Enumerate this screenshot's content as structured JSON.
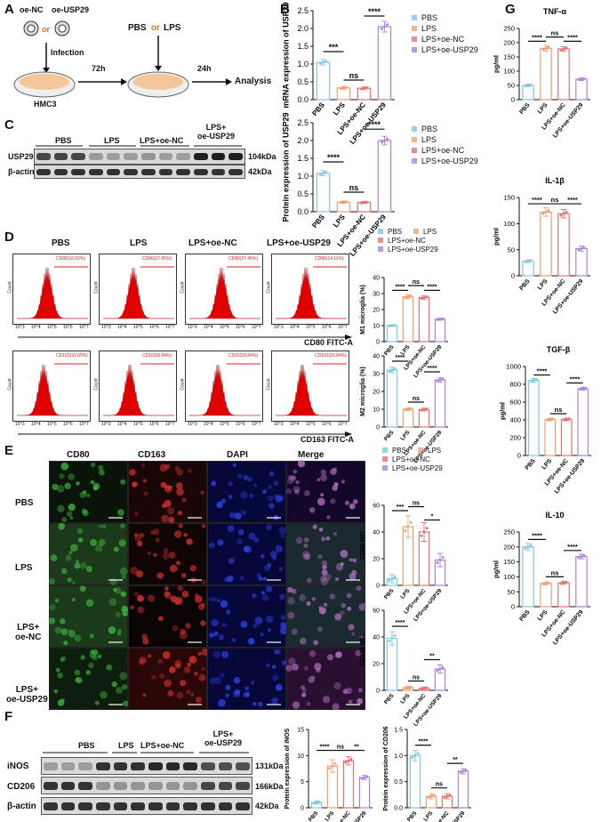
{
  "panels": {
    "A": "A",
    "B": "B",
    "C": "C",
    "D": "D",
    "E": "E",
    "F": "F",
    "G": "G"
  },
  "colors": {
    "PBS": "#7ec8e8",
    "LPS": "#f0a070",
    "LPS+oe-NC": "#e87070",
    "LPS+oe-USP29": "#b080e0",
    "green": "#2a8a2a",
    "red": "#c02020",
    "blue": "#2030c0",
    "hist": "#e00000"
  },
  "groups": [
    "PBS",
    "LPS",
    "LPS+oe-NC",
    "LPS+oe-USP29"
  ],
  "panelA": {
    "virus1": "oe-NC",
    "virus2": "oe-USP29",
    "or1": "or",
    "or2": "or",
    "infection": "Infection",
    "cell": "HMC3",
    "time1": "72h",
    "treat_pbs": "PBS",
    "treat_or": "or",
    "treat_lps": "LPS",
    "time2": "24h",
    "analysis": "Analysis"
  },
  "panelC": {
    "lane_labels": [
      "PBS",
      "LPS",
      "LPS+oe-NC",
      "LPS+\noe-USP29"
    ],
    "rows": [
      "USP29",
      "β-actin"
    ],
    "sizes": [
      "104kDa",
      "42kDa"
    ]
  },
  "panelD": {
    "cols": [
      "PBS",
      "LPS",
      "LPS+oe-NC",
      "LPS+oe-USP29"
    ],
    "gates_cd80": [
      "CD80(10.02%)",
      "CD80(27.85%)",
      "CD80(27.45%)",
      "CD80(14.11%)"
    ],
    "gates_cd163": [
      "CD163(31.65%)",
      "CD163(9.84%)",
      "CD163(9.84%)",
      "CD163(26.84%)"
    ],
    "xaxis1": "CD80 FITC-A",
    "xaxis2": "CD163 FITC-A",
    "count": "Count",
    "ticks": [
      "10^3",
      "10^4",
      "10^5",
      "10^6",
      "10^7"
    ]
  },
  "panelE": {
    "cols": [
      "CD80",
      "CD163",
      "DAPI",
      "Merge"
    ],
    "rows": [
      "PBS",
      "LPS",
      "LPS+\noe-NC",
      "LPS+\noe-USP29"
    ]
  },
  "panelF": {
    "lane_labels": [
      "PBS",
      "LPS",
      "LPS+oe-NC",
      "LPS+\noe-USP29"
    ],
    "rows": [
      "iNOS",
      "CD206",
      "β-actin"
    ],
    "sizes": [
      "131kDa",
      "166kDa",
      "42kDa"
    ]
  },
  "legend": {
    "items": [
      "PBS",
      "LPS",
      "LPS+oe-NC",
      "LPS+oe-USP29"
    ]
  },
  "chart_data": [
    {
      "id": "B1",
      "type": "bar",
      "ylabel": "mRNA expression of USP29",
      "categories": [
        "PBS",
        "LPS",
        "LPS+oe-NC",
        "LPS+oe-USP29"
      ],
      "values": [
        1.05,
        0.33,
        0.32,
        2.05
      ],
      "errors": [
        0.08,
        0.04,
        0.04,
        0.15
      ],
      "ylim": [
        0,
        2.5
      ],
      "yticks": [
        0,
        0.5,
        1.0,
        1.5,
        2.0,
        2.5
      ],
      "yticklabels": [
        "0.0",
        "0.5",
        "1.0",
        "1.5",
        "2.0",
        "2.5"
      ],
      "sig": [
        {
          "a": 0,
          "b": 1,
          "label": "***",
          "at": 1.35
        },
        {
          "a": 1,
          "b": 2,
          "label": "ns",
          "at": 0.55
        },
        {
          "a": 2,
          "b": 3,
          "label": "****",
          "at": 2.35
        }
      ]
    },
    {
      "id": "B2",
      "type": "bar",
      "ylabel": "Protein expression of USP29",
      "categories": [
        "PBS",
        "LPS",
        "LPS+oe-NC",
        "LPS+oe-USP29"
      ],
      "values": [
        1.08,
        0.27,
        0.26,
        2.0
      ],
      "errors": [
        0.07,
        0.03,
        0.03,
        0.12
      ],
      "ylim": [
        0,
        2.5
      ],
      "yticks": [
        0,
        0.5,
        1.0,
        1.5,
        2.0,
        2.5
      ],
      "yticklabels": [
        "0.0",
        "0.5",
        "1.0",
        "1.5",
        "2.0",
        "2.5"
      ],
      "sig": [
        {
          "a": 0,
          "b": 1,
          "label": "****",
          "at": 1.4
        },
        {
          "a": 1,
          "b": 2,
          "label": "ns",
          "at": 0.55
        },
        {
          "a": 2,
          "b": 3,
          "label": "****",
          "at": 2.32
        }
      ]
    },
    {
      "id": "D1",
      "type": "bar",
      "ylabel": "M1 microglia (%)",
      "categories": [
        "PBS",
        "LPS",
        "LPS+oe-NC",
        "LPS+oe-USP29"
      ],
      "values": [
        10,
        28,
        27.5,
        14
      ],
      "errors": [
        0.6,
        1.2,
        1.2,
        0.6
      ],
      "ylim": [
        0,
        40
      ],
      "yticks": [
        0,
        10,
        20,
        30,
        40
      ],
      "yticklabels": [
        "0",
        "10",
        "20",
        "30",
        "40"
      ],
      "sig": [
        {
          "a": 0,
          "b": 1,
          "label": "****",
          "at": 32
        },
        {
          "a": 1,
          "b": 2,
          "label": "ns",
          "at": 35
        },
        {
          "a": 2,
          "b": 3,
          "label": "****",
          "at": 32
        }
      ]
    },
    {
      "id": "D2",
      "type": "bar",
      "ylabel": "M2 microglia (%)",
      "categories": [
        "PBS",
        "LPS",
        "LPS+oe-NC",
        "LPS+oe-USP29"
      ],
      "values": [
        32,
        10,
        9.8,
        26.5
      ],
      "errors": [
        1.5,
        0.8,
        0.8,
        1.2
      ],
      "ylim": [
        0,
        40
      ],
      "yticks": [
        0,
        10,
        20,
        30,
        40
      ],
      "yticklabels": [
        "0",
        "10",
        "20",
        "30",
        "40"
      ],
      "sig": [
        {
          "a": 0,
          "b": 1,
          "label": "****",
          "at": 37
        },
        {
          "a": 1,
          "b": 2,
          "label": "ns",
          "at": 14
        },
        {
          "a": 2,
          "b": 3,
          "label": "****",
          "at": 31
        }
      ]
    },
    {
      "id": "E1",
      "type": "bar",
      "ylabel": "CD80 MFI",
      "categories": [
        "PBS",
        "LPS",
        "LPS+oe-NC",
        "LPS+oe-USP29"
      ],
      "values": [
        5,
        44,
        40,
        19
      ],
      "errors": [
        3,
        8,
        7,
        5
      ],
      "ylim": [
        0,
        60
      ],
      "yticks": [
        0,
        20,
        40,
        60
      ],
      "yticklabels": [
        "0",
        "20",
        "40",
        "60"
      ],
      "sig": [
        {
          "a": 0,
          "b": 1,
          "label": "***",
          "at": 56
        },
        {
          "a": 1,
          "b": 2,
          "label": "ns",
          "at": 59
        },
        {
          "a": 2,
          "b": 3,
          "label": "*",
          "at": 49
        }
      ]
    },
    {
      "id": "E2",
      "type": "bar",
      "ylabel": "CD163 MFI",
      "categories": [
        "PBS",
        "LPS",
        "LPS+oe-NC",
        "LPS+oe-USP29"
      ],
      "values": [
        39,
        2,
        1.5,
        16
      ],
      "errors": [
        5,
        1,
        1,
        3
      ],
      "ylim": [
        0,
        60
      ],
      "yticks": [
        0,
        20,
        40,
        60
      ],
      "yticklabels": [
        "0",
        "20",
        "40",
        "60"
      ],
      "sig": [
        {
          "a": 0,
          "b": 1,
          "label": "****",
          "at": 48
        },
        {
          "a": 1,
          "b": 2,
          "label": "ns",
          "at": 7
        },
        {
          "a": 2,
          "b": 3,
          "label": "**",
          "at": 23
        }
      ]
    },
    {
      "id": "F1",
      "type": "bar",
      "ylabel": "Protein expression of iNOS",
      "categories": [
        "PBS",
        "LPS",
        "LPS+oe-NC",
        "LPS+oe-USP29"
      ],
      "values": [
        1,
        8,
        9,
        5.8
      ],
      "errors": [
        0.3,
        1.2,
        0.8,
        0.4
      ],
      "ylim": [
        0,
        15
      ],
      "yticks": [
        0,
        5,
        10,
        15
      ],
      "yticklabels": [
        "0",
        "5",
        "10",
        "15"
      ],
      "sig": [
        {
          "a": 0,
          "b": 1,
          "label": "****",
          "at": 11
        },
        {
          "a": 1,
          "b": 2,
          "label": "ns",
          "at": 11
        },
        {
          "a": 2,
          "b": 3,
          "label": "**",
          "at": 11
        }
      ]
    },
    {
      "id": "F2",
      "type": "bar",
      "ylabel": "Protein expression of CD206",
      "categories": [
        "PBS",
        "LPS",
        "LPS+oe-NC",
        "LPS+oe-USP29"
      ],
      "values": [
        1.0,
        0.22,
        0.22,
        0.7
      ],
      "errors": [
        0.1,
        0.05,
        0.05,
        0.05
      ],
      "ylim": [
        0,
        1.5
      ],
      "yticks": [
        0,
        0.5,
        1.0,
        1.5
      ],
      "yticklabels": [
        "0.0",
        "0.5",
        "1.0",
        "1.5"
      ],
      "sig": [
        {
          "a": 0,
          "b": 1,
          "label": "****",
          "at": 1.2
        },
        {
          "a": 1,
          "b": 2,
          "label": "ns",
          "at": 0.38
        },
        {
          "a": 2,
          "b": 3,
          "label": "**",
          "at": 0.85
        }
      ]
    },
    {
      "id": "G1",
      "type": "bar",
      "title": "TNF-α",
      "ylabel": "pg/ml",
      "categories": [
        "PBS",
        "LPS",
        "LPS+oe-NC",
        "LPS+oe-USP29"
      ],
      "values": [
        50,
        180,
        178,
        72
      ],
      "errors": [
        5,
        10,
        8,
        5
      ],
      "ylim": [
        0,
        250
      ],
      "yticks": [
        0,
        50,
        100,
        150,
        200,
        250
      ],
      "yticklabels": [
        "0",
        "50",
        "100",
        "150",
        "200",
        "250"
      ],
      "sig": [
        {
          "a": 0,
          "b": 1,
          "label": "****",
          "at": 205
        },
        {
          "a": 1,
          "b": 2,
          "label": "ns",
          "at": 220
        },
        {
          "a": 2,
          "b": 3,
          "label": "****",
          "at": 205
        }
      ]
    },
    {
      "id": "G2",
      "type": "bar",
      "title": "IL-1β",
      "ylabel": "pg/ml",
      "categories": [
        "PBS",
        "LPS",
        "LPS+oe-NC",
        "LPS+oe-USP29"
      ],
      "values": [
        28,
        122,
        119,
        52
      ],
      "errors": [
        3,
        8,
        8,
        5
      ],
      "ylim": [
        0,
        150
      ],
      "yticks": [
        0,
        50,
        100,
        150
      ],
      "yticklabels": [
        "0",
        "50",
        "100",
        "150"
      ],
      "sig": [
        {
          "a": 0,
          "b": 1,
          "label": "****",
          "at": 138
        },
        {
          "a": 1,
          "b": 2,
          "label": "ns",
          "at": 138
        },
        {
          "a": 2,
          "b": 3,
          "label": "****",
          "at": 138
        }
      ]
    },
    {
      "id": "G3",
      "type": "bar",
      "title": "TGF-β",
      "ylabel": "pg/ml",
      "categories": [
        "PBS",
        "LPS",
        "LPS+oe-NC",
        "LPS+oe-USP29"
      ],
      "values": [
        845,
        405,
        405,
        750
      ],
      "errors": [
        20,
        15,
        15,
        15
      ],
      "ylim": [
        0,
        1000
      ],
      "yticks": [
        0,
        200,
        400,
        600,
        800,
        1000
      ],
      "yticklabels": [
        "0",
        "200",
        "400",
        "600",
        "800",
        "1000"
      ],
      "sig": [
        {
          "a": 0,
          "b": 1,
          "label": "****",
          "at": 905
        },
        {
          "a": 1,
          "b": 2,
          "label": "ns",
          "at": 470
        },
        {
          "a": 2,
          "b": 3,
          "label": "****",
          "at": 815
        }
      ]
    },
    {
      "id": "G4",
      "type": "bar",
      "title": "IL-10",
      "ylabel": "pg/ml",
      "categories": [
        "PBS",
        "LPS",
        "LPS+oe-NC",
        "LPS+oe-USP29"
      ],
      "values": [
        200,
        78,
        80,
        168
      ],
      "errors": [
        12,
        5,
        5,
        8
      ],
      "ylim": [
        0,
        250
      ],
      "yticks": [
        0,
        50,
        100,
        150,
        200,
        250
      ],
      "yticklabels": [
        "0",
        "50",
        "100",
        "150",
        "200",
        "250"
      ],
      "sig": [
        {
          "a": 0,
          "b": 1,
          "label": "****",
          "at": 225
        },
        {
          "a": 1,
          "b": 2,
          "label": "ns",
          "at": 100
        },
        {
          "a": 2,
          "b": 3,
          "label": "****",
          "at": 188
        }
      ]
    }
  ]
}
